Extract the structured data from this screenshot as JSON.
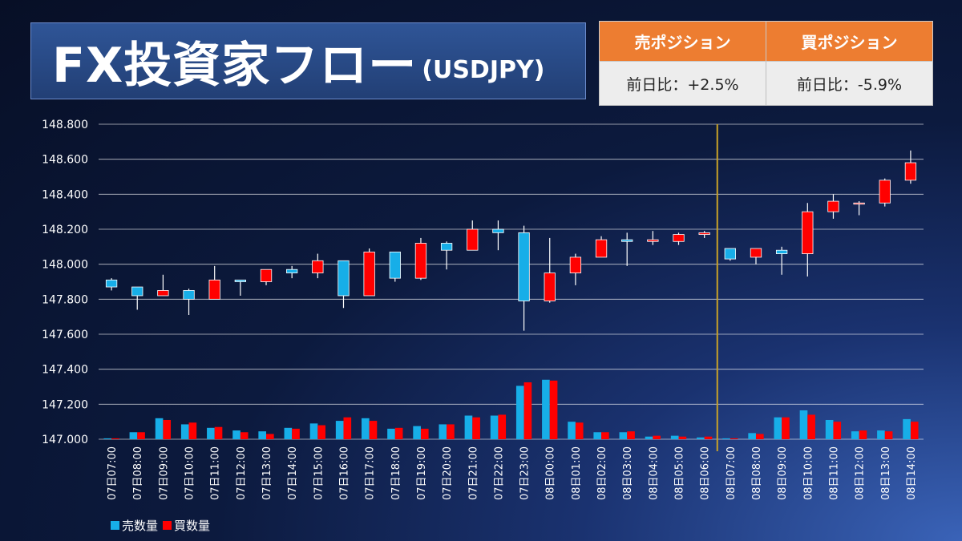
{
  "title": {
    "main": "FX投資家フロー",
    "pair": "(USDJPY)"
  },
  "positions": {
    "headers": [
      "売ポジション",
      "買ポジション"
    ],
    "values": [
      "前日比：+2.5%",
      "前日比：-5.9%"
    ]
  },
  "legend": [
    {
      "label": "売数量",
      "color": "#17aee8"
    },
    {
      "label": "買数量",
      "color": "#ff0000"
    }
  ],
  "colors": {
    "up": "#ff0000",
    "down": "#17aee8",
    "grid": "#ffffff",
    "divider": "#c9a227"
  },
  "chart_data": {
    "type": "candlestick+bar",
    "ylim": [
      147.0,
      148.8
    ],
    "yticks": [
      "147.000",
      "147.200",
      "147.400",
      "147.600",
      "147.800",
      "148.000",
      "148.200",
      "148.400",
      "148.600",
      "148.800"
    ],
    "ytick_values": [
      147.0,
      147.2,
      147.4,
      147.6,
      147.8,
      148.0,
      148.2,
      148.4,
      148.6,
      148.8
    ],
    "categories": [
      "07日07:00",
      "07日08:00",
      "07日09:00",
      "07日10:00",
      "07日11:00",
      "07日12:00",
      "07日13:00",
      "07日14:00",
      "07日15:00",
      "07日16:00",
      "07日17:00",
      "07日18:00",
      "07日19:00",
      "07日20:00",
      "07日21:00",
      "07日22:00",
      "07日23:00",
      "08日00:00",
      "08日01:00",
      "08日02:00",
      "08日03:00",
      "08日04:00",
      "08日05:00",
      "08日06:00",
      "08日07:00",
      "08日08:00",
      "08日09:00",
      "08日10:00",
      "08日11:00",
      "08日12:00",
      "08日13:00",
      "08日14:00"
    ],
    "divider_after_index": 23,
    "candles": [
      {
        "o": 147.91,
        "h": 147.92,
        "l": 147.85,
        "c": 147.87
      },
      {
        "o": 147.87,
        "h": 147.87,
        "l": 147.74,
        "c": 147.82
      },
      {
        "o": 147.82,
        "h": 147.94,
        "l": 147.82,
        "c": 147.85
      },
      {
        "o": 147.85,
        "h": 147.86,
        "l": 147.71,
        "c": 147.8
      },
      {
        "o": 147.8,
        "h": 147.99,
        "l": 147.8,
        "c": 147.91
      },
      {
        "o": 147.91,
        "h": 147.91,
        "l": 147.82,
        "c": 147.9
      },
      {
        "o": 147.9,
        "h": 147.97,
        "l": 147.88,
        "c": 147.97
      },
      {
        "o": 147.97,
        "h": 147.99,
        "l": 147.92,
        "c": 147.95
      },
      {
        "o": 147.95,
        "h": 148.06,
        "l": 147.92,
        "c": 148.02
      },
      {
        "o": 148.02,
        "h": 148.02,
        "l": 147.75,
        "c": 147.82
      },
      {
        "o": 147.82,
        "h": 148.09,
        "l": 147.82,
        "c": 148.07
      },
      {
        "o": 148.07,
        "h": 148.07,
        "l": 147.9,
        "c": 147.92
      },
      {
        "o": 147.92,
        "h": 148.15,
        "l": 147.91,
        "c": 148.12
      },
      {
        "o": 148.12,
        "h": 148.13,
        "l": 147.97,
        "c": 148.08
      },
      {
        "o": 148.08,
        "h": 148.25,
        "l": 148.08,
        "c": 148.2
      },
      {
        "o": 148.2,
        "h": 148.25,
        "l": 148.08,
        "c": 148.18
      },
      {
        "o": 148.18,
        "h": 148.22,
        "l": 147.62,
        "c": 147.79
      },
      {
        "o": 147.79,
        "h": 148.15,
        "l": 147.78,
        "c": 147.95
      },
      {
        "o": 147.95,
        "h": 148.06,
        "l": 147.88,
        "c": 148.04
      },
      {
        "o": 148.04,
        "h": 148.16,
        "l": 148.04,
        "c": 148.14
      },
      {
        "o": 148.14,
        "h": 148.18,
        "l": 147.99,
        "c": 148.13
      },
      {
        "o": 148.13,
        "h": 148.19,
        "l": 148.11,
        "c": 148.14
      },
      {
        "o": 148.13,
        "h": 148.18,
        "l": 148.11,
        "c": 148.17
      },
      {
        "o": 148.17,
        "h": 148.19,
        "l": 148.15,
        "c": 148.18
      },
      {
        "o": 148.09,
        "h": 148.09,
        "l": 148.02,
        "c": 148.03
      },
      {
        "o": 148.04,
        "h": 148.09,
        "l": 148.0,
        "c": 148.09
      },
      {
        "o": 148.08,
        "h": 148.1,
        "l": 147.94,
        "c": 148.06
      },
      {
        "o": 148.06,
        "h": 148.35,
        "l": 147.93,
        "c": 148.3
      },
      {
        "o": 148.3,
        "h": 148.4,
        "l": 148.26,
        "c": 148.36
      },
      {
        "o": 148.35,
        "h": 148.36,
        "l": 148.28,
        "c": 148.35
      },
      {
        "o": 148.35,
        "h": 148.49,
        "l": 148.33,
        "c": 148.48
      },
      {
        "o": 148.48,
        "h": 148.65,
        "l": 148.46,
        "c": 148.58
      }
    ],
    "series": [
      {
        "name": "売数量",
        "values": [
          147.005,
          147.04,
          147.12,
          147.085,
          147.065,
          147.05,
          147.045,
          147.065,
          147.09,
          147.105,
          147.12,
          147.06,
          147.075,
          147.085,
          147.135,
          147.135,
          147.305,
          147.34,
          147.1,
          147.04,
          147.04,
          147.015,
          147.02,
          147.01,
          147.005,
          147.035,
          147.125,
          147.165,
          147.11,
          147.045,
          147.05,
          147.115
        ]
      },
      {
        "name": "買数量",
        "values": [
          147.005,
          147.04,
          147.11,
          147.095,
          147.07,
          147.04,
          147.03,
          147.06,
          147.08,
          147.125,
          147.105,
          147.065,
          147.06,
          147.085,
          147.125,
          147.14,
          147.325,
          147.335,
          147.095,
          147.04,
          147.045,
          147.02,
          147.015,
          147.015,
          147.005,
          147.03,
          147.125,
          147.14,
          147.1,
          147.05,
          147.045,
          147.1
        ]
      }
    ]
  }
}
